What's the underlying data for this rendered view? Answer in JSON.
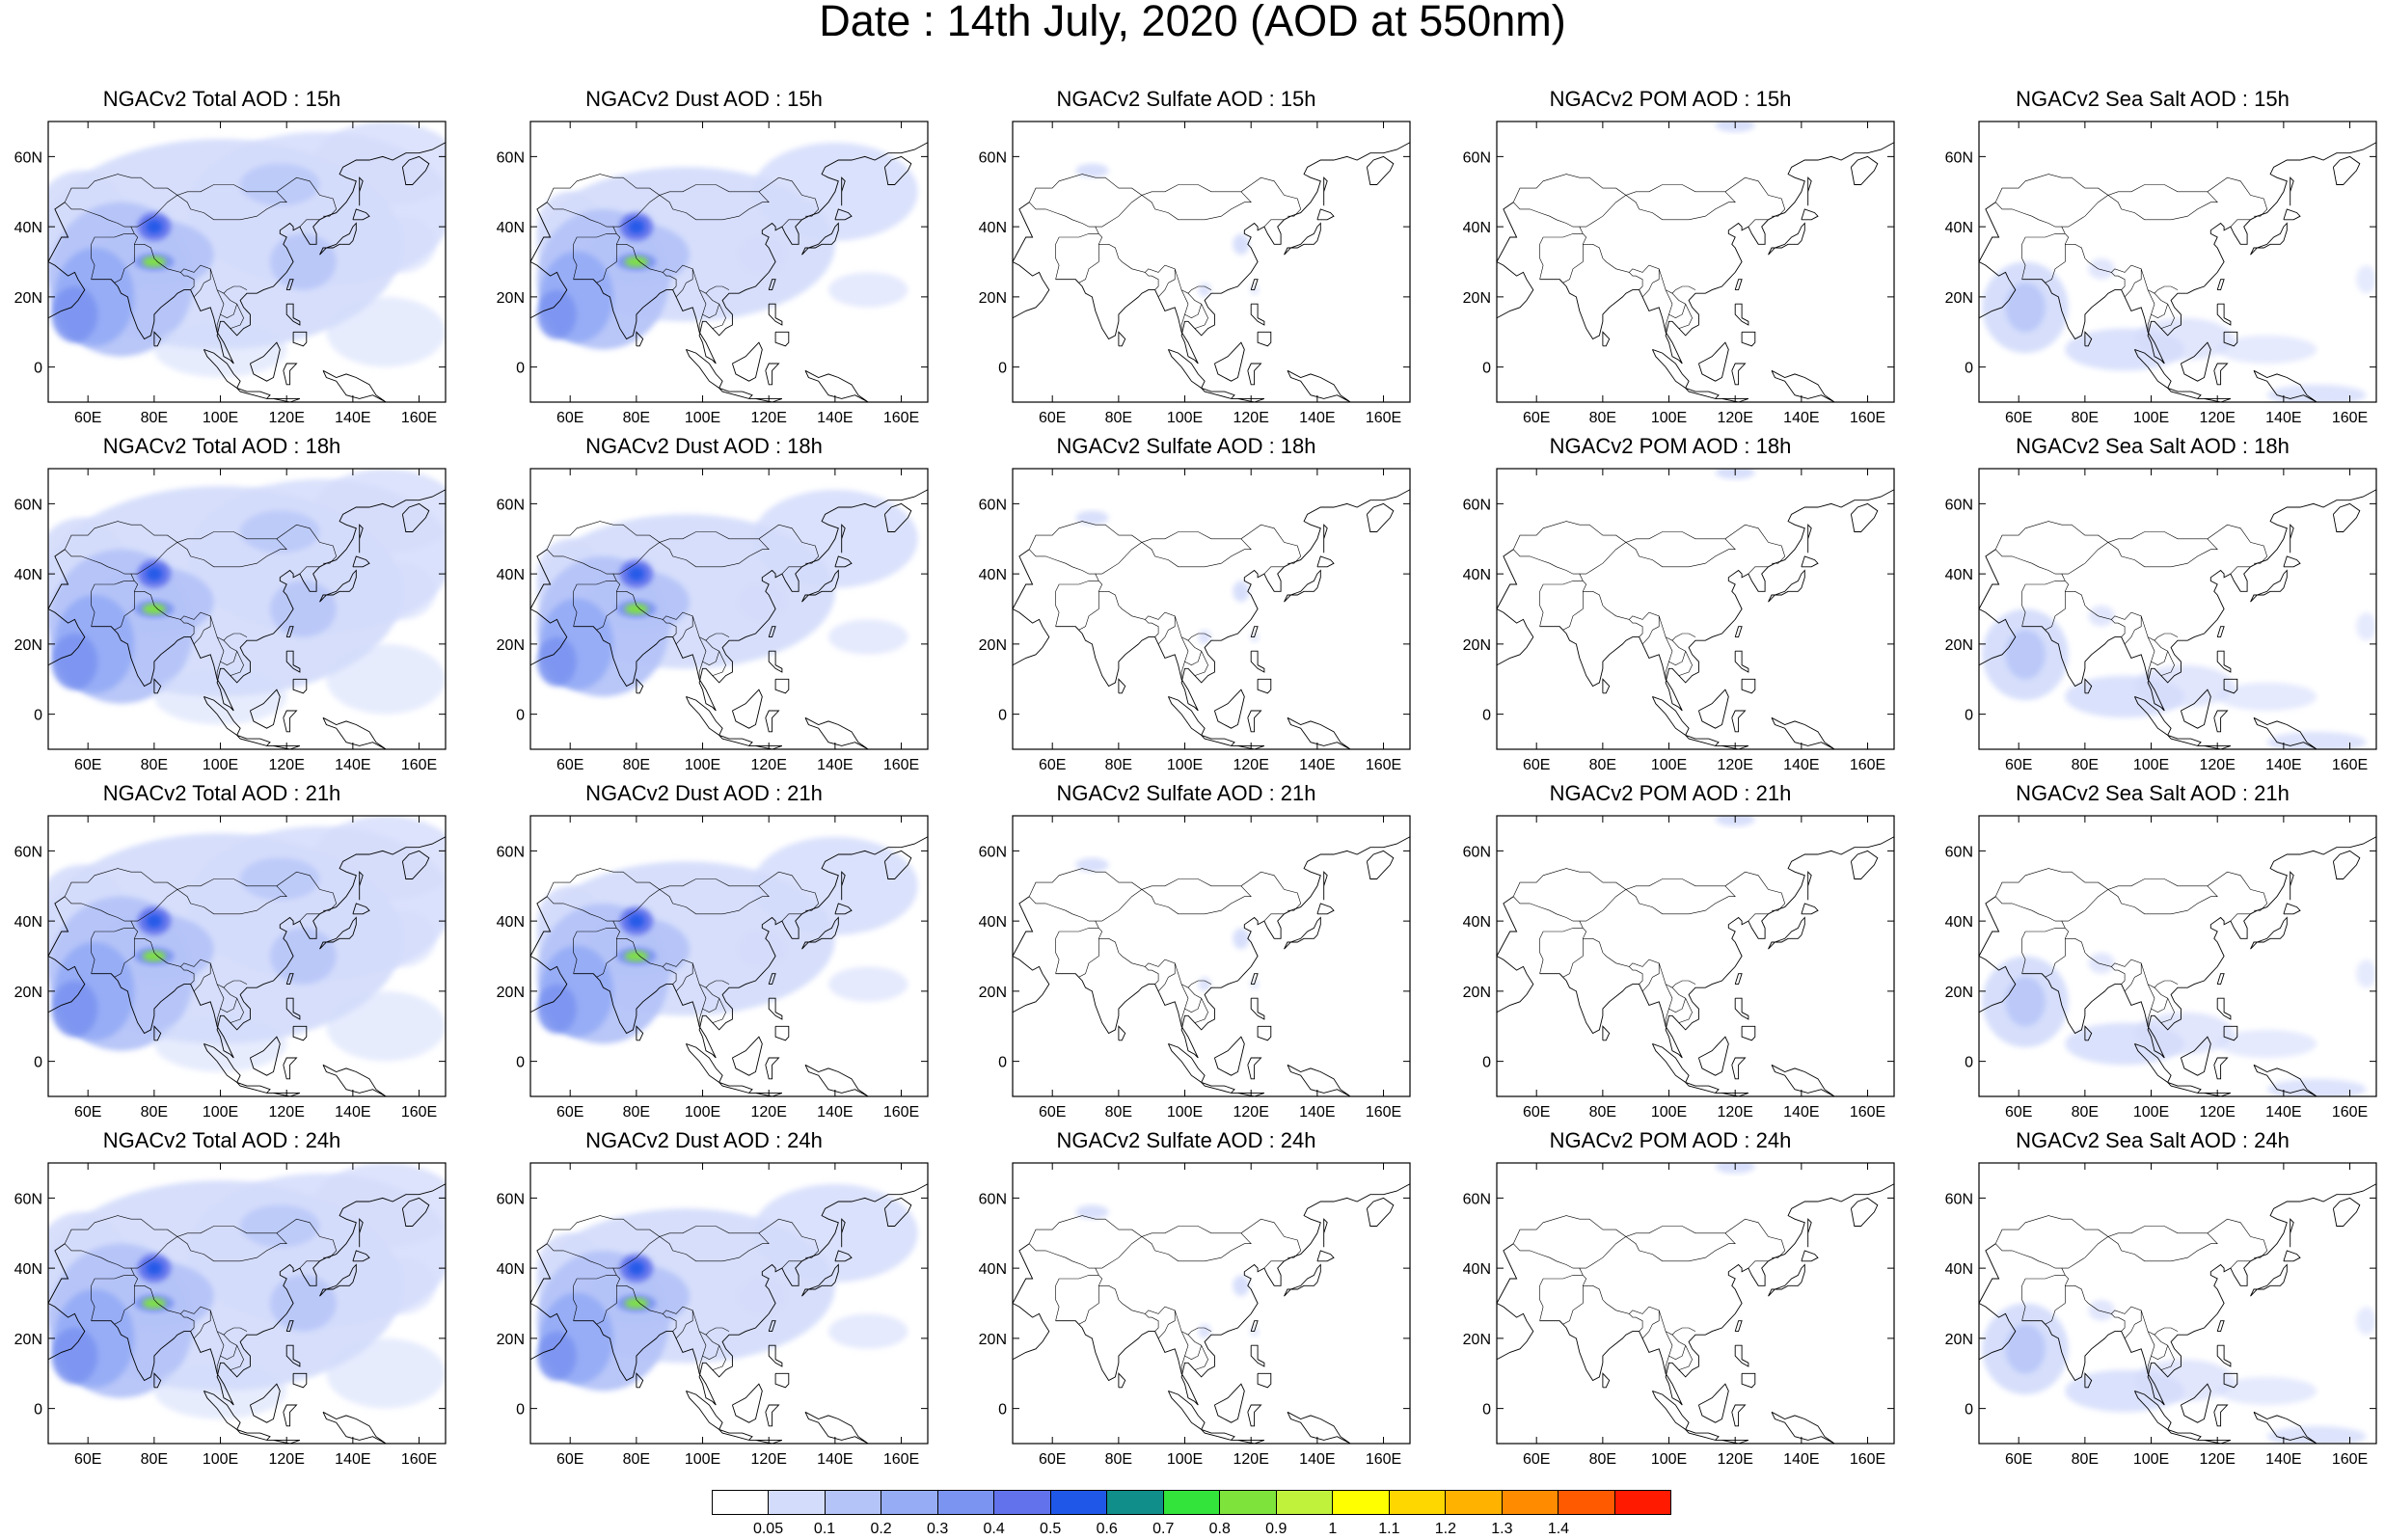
{
  "title": "Date : 14th July, 2020 (AOD at 550nm)",
  "map_axes": {
    "lon_ticks": [
      "60E",
      "80E",
      "100E",
      "120E",
      "140E",
      "160E"
    ],
    "lon_values": [
      60,
      80,
      100,
      120,
      140,
      160
    ],
    "lat_ticks": [
      "60N",
      "40N",
      "20N",
      "0"
    ],
    "lat_values": [
      60,
      40,
      20,
      0
    ],
    "lon_range": [
      48,
      168
    ],
    "lat_range": [
      -10,
      70
    ]
  },
  "colorbar": {
    "colors": [
      "#ffffff",
      "#d4dcfb",
      "#b4c3f8",
      "#96acf5",
      "#7b93f1",
      "#6272ec",
      "#1f57e8",
      "#0f8e8a",
      "#33e43a",
      "#7ee43c",
      "#c0f23c",
      "#ffff00",
      "#ffd700",
      "#ffb300",
      "#ff8c00",
      "#ff5a00",
      "#ff1a00"
    ],
    "labels": [
      "0.05",
      "0.1",
      "0.2",
      "0.3",
      "0.4",
      "0.5",
      "0.6",
      "0.7",
      "0.8",
      "0.9",
      "1",
      "1.1",
      "1.2",
      "1.3",
      "1.4"
    ]
  },
  "panels": [
    {
      "title": "NGACv2 Total AOD : 15h",
      "type": "total"
    },
    {
      "title": "NGACv2 Dust AOD : 15h",
      "type": "dust"
    },
    {
      "title": "NGACv2 Sulfate AOD : 15h",
      "type": "sulfate"
    },
    {
      "title": "NGACv2 POM AOD : 15h",
      "type": "pom"
    },
    {
      "title": "NGACv2 Sea Salt AOD : 15h",
      "type": "seasalt"
    },
    {
      "title": "NGACv2 Total AOD : 18h",
      "type": "total"
    },
    {
      "title": "NGACv2 Dust AOD : 18h",
      "type": "dust"
    },
    {
      "title": "NGACv2 Sulfate AOD : 18h",
      "type": "sulfate"
    },
    {
      "title": "NGACv2 POM AOD : 18h",
      "type": "pom"
    },
    {
      "title": "NGACv2 Sea Salt AOD : 18h",
      "type": "seasalt"
    },
    {
      "title": "NGACv2 Total AOD : 21h",
      "type": "total"
    },
    {
      "title": "NGACv2 Dust AOD : 21h",
      "type": "dust"
    },
    {
      "title": "NGACv2 Sulfate AOD : 21h",
      "type": "sulfate"
    },
    {
      "title": "NGACv2 POM AOD : 21h",
      "type": "pom"
    },
    {
      "title": "NGACv2 Sea Salt AOD : 21h",
      "type": "seasalt"
    },
    {
      "title": "NGACv2 Total AOD : 24h",
      "type": "total"
    },
    {
      "title": "NGACv2 Dust AOD : 24h",
      "type": "dust"
    },
    {
      "title": "NGACv2 Sulfate AOD : 24h",
      "type": "sulfate"
    },
    {
      "title": "NGACv2 POM AOD : 24h",
      "type": "pom"
    },
    {
      "title": "NGACv2 Sea Salt  AOD : 24h",
      "type": "seasalt"
    }
  ]
}
